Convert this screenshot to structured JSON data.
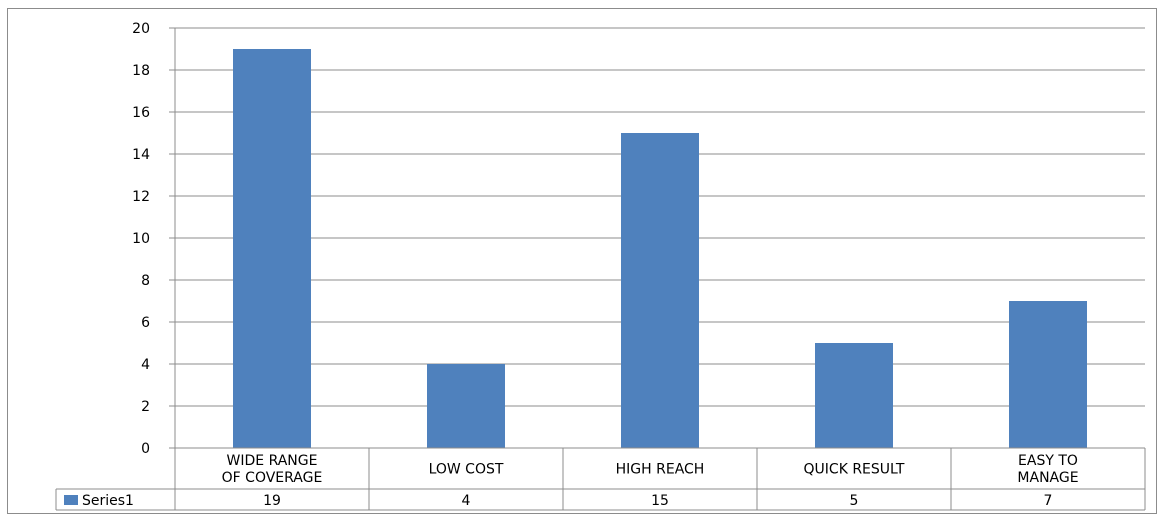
{
  "chart_data": {
    "type": "bar",
    "title": "",
    "xlabel": "",
    "ylabel": "",
    "ylim": [
      0,
      20
    ],
    "ytick_step": 2,
    "grid": true,
    "data_table": true,
    "categories": [
      [
        "WIDE RANGE",
        "OF COVERAGE"
      ],
      [
        "LOW COST"
      ],
      [
        "HIGH REACH"
      ],
      [
        "QUICK RESULT"
      ],
      [
        "EASY TO",
        "MANAGE"
      ]
    ],
    "series": [
      {
        "name": "Series1",
        "values": [
          19,
          4,
          15,
          5,
          7
        ],
        "color": "#4f81bd"
      }
    ]
  }
}
